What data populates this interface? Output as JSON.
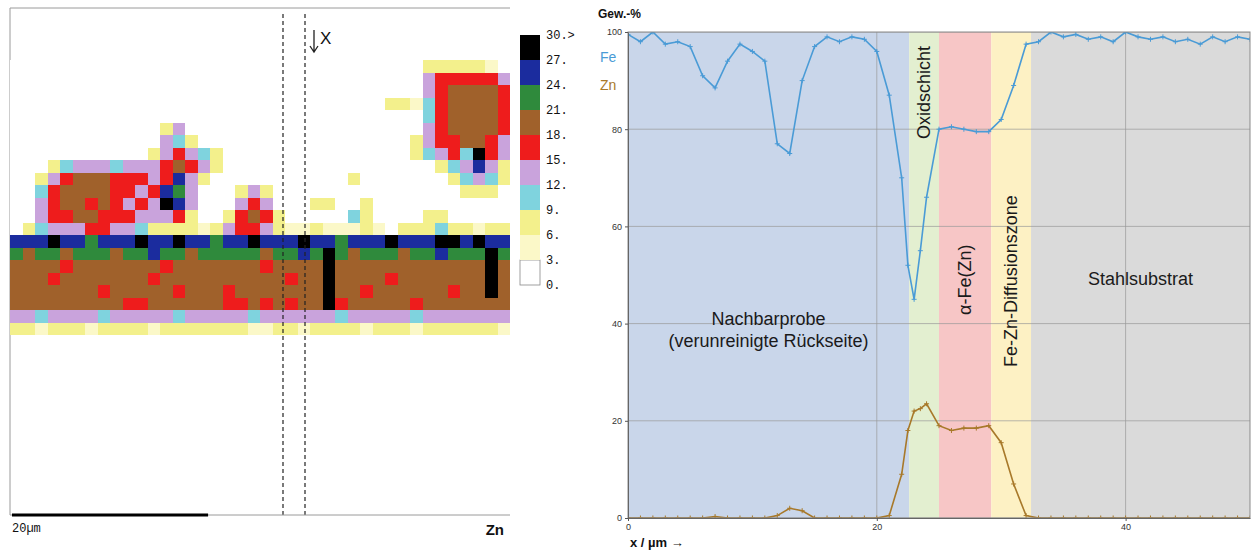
{
  "chart_data": [
    {
      "type": "heatmap",
      "title": "Zn",
      "xlim": [
        0,
        51
      ],
      "scale_bar": {
        "value": 20,
        "label": "20µm"
      },
      "annotations": [
        {
          "text": "X"
        }
      ],
      "colorbar": {
        "range": [
          0,
          30
        ],
        "ticks": [
          {
            "value": 0,
            "label": "0."
          },
          {
            "value": 3,
            "label": "3."
          },
          {
            "value": 6,
            "label": "6."
          },
          {
            "value": 9,
            "label": "9."
          },
          {
            "value": 12,
            "label": "12."
          },
          {
            "value": 15,
            "label": "15."
          },
          {
            "value": 18,
            "label": "18."
          },
          {
            "value": 21,
            "label": "21."
          },
          {
            "value": 24,
            "label": "24."
          },
          {
            "value": 27,
            "label": "27."
          },
          {
            "value": 30,
            "label": "30.>"
          }
        ],
        "colors": [
          "#ffffff",
          "#fbf8c8",
          "#f3f08c",
          "#7fd3de",
          "#c9a3dc",
          "#ee1c1c",
          "#a0612b",
          "#2f8a3c",
          "#1b2c9e",
          "#000000"
        ]
      },
      "cells": [
        [
          0,
          0,
          0,
          0,
          0,
          0,
          0,
          0,
          0,
          0,
          0,
          0,
          0,
          0,
          0,
          0,
          0,
          0,
          0,
          0,
          0,
          0,
          0,
          0,
          0,
          0,
          0,
          0,
          0,
          0,
          0,
          0,
          0,
          6,
          6,
          6,
          6,
          6,
          3,
          0
        ],
        [
          0,
          0,
          0,
          0,
          0,
          0,
          0,
          0,
          0,
          0,
          0,
          0,
          0,
          0,
          0,
          0,
          0,
          0,
          0,
          0,
          0,
          0,
          0,
          0,
          0,
          0,
          0,
          0,
          0,
          0,
          0,
          0,
          0,
          12,
          15,
          15,
          15,
          15,
          15,
          12
        ],
        [
          0,
          0,
          0,
          0,
          0,
          0,
          0,
          0,
          0,
          0,
          0,
          0,
          0,
          0,
          0,
          0,
          0,
          0,
          0,
          0,
          0,
          0,
          0,
          0,
          0,
          0,
          0,
          0,
          0,
          0,
          0,
          0,
          0,
          12,
          15,
          18,
          18,
          18,
          18,
          15
        ],
        [
          0,
          0,
          0,
          0,
          0,
          0,
          0,
          0,
          0,
          0,
          0,
          0,
          0,
          0,
          0,
          0,
          0,
          0,
          0,
          0,
          0,
          0,
          0,
          0,
          0,
          0,
          0,
          0,
          0,
          0,
          6,
          6,
          3,
          9,
          15,
          18,
          18,
          18,
          18,
          15
        ],
        [
          0,
          0,
          0,
          0,
          0,
          0,
          0,
          0,
          0,
          0,
          0,
          0,
          0,
          0,
          0,
          0,
          0,
          0,
          0,
          0,
          0,
          0,
          0,
          0,
          0,
          0,
          0,
          0,
          0,
          0,
          0,
          0,
          0,
          9,
          15,
          18,
          18,
          18,
          18,
          15
        ],
        [
          0,
          0,
          0,
          0,
          0,
          0,
          0,
          0,
          0,
          0,
          0,
          0,
          6,
          12,
          0,
          0,
          0,
          0,
          0,
          0,
          0,
          0,
          0,
          0,
          0,
          0,
          0,
          0,
          0,
          0,
          0,
          0,
          0,
          12,
          15,
          18,
          18,
          18,
          18,
          15
        ],
        [
          0,
          0,
          0,
          0,
          0,
          0,
          0,
          0,
          0,
          0,
          0,
          0,
          12,
          9,
          6,
          0,
          0,
          0,
          0,
          0,
          0,
          0,
          0,
          0,
          0,
          0,
          0,
          0,
          0,
          0,
          0,
          0,
          6,
          12,
          15,
          15,
          18,
          18,
          15,
          12
        ],
        [
          0,
          0,
          0,
          0,
          0,
          0,
          0,
          0,
          0,
          0,
          0,
          6,
          12,
          15,
          12,
          9,
          6,
          0,
          0,
          0,
          0,
          0,
          0,
          0,
          0,
          0,
          0,
          0,
          0,
          0,
          0,
          0,
          6,
          9,
          12,
          15,
          9,
          30,
          15,
          12
        ],
        [
          0,
          0,
          0,
          6,
          9,
          12,
          12,
          12,
          9,
          12,
          12,
          12,
          15,
          18,
          15,
          12,
          6,
          0,
          0,
          0,
          0,
          0,
          0,
          0,
          0,
          0,
          0,
          0,
          0,
          0,
          0,
          0,
          0,
          0,
          6,
          9,
          12,
          24,
          12,
          6
        ],
        [
          0,
          0,
          6,
          12,
          15,
          18,
          18,
          18,
          15,
          15,
          15,
          12,
          15,
          24,
          12,
          6,
          0,
          0,
          0,
          0,
          0,
          0,
          0,
          0,
          0,
          0,
          0,
          6,
          0,
          0,
          0,
          0,
          0,
          0,
          0,
          6,
          9,
          12,
          9,
          6
        ],
        [
          0,
          0,
          9,
          15,
          18,
          18,
          18,
          18,
          15,
          15,
          12,
          15,
          24,
          21,
          12,
          0,
          0,
          0,
          6,
          12,
          6,
          0,
          0,
          0,
          0,
          0,
          0,
          0,
          0,
          0,
          0,
          0,
          0,
          0,
          0,
          0,
          6,
          6,
          6,
          0
        ],
        [
          0,
          0,
          12,
          15,
          18,
          18,
          15,
          18,
          15,
          12,
          15,
          12,
          30,
          24,
          12,
          0,
          0,
          0,
          12,
          15,
          12,
          0,
          0,
          0,
          6,
          6,
          0,
          0,
          6,
          0,
          0,
          0,
          0,
          0,
          0,
          0,
          0,
          0,
          0,
          0
        ],
        [
          0,
          0,
          12,
          15,
          15,
          18,
          18,
          15,
          15,
          15,
          12,
          12,
          12,
          15,
          6,
          0,
          0,
          6,
          15,
          18,
          15,
          6,
          0,
          0,
          0,
          0,
          0,
          9,
          6,
          0,
          0,
          0,
          0,
          6,
          6,
          0,
          0,
          0,
          0,
          0
        ],
        [
          0,
          6,
          9,
          12,
          12,
          12,
          15,
          15,
          12,
          12,
          9,
          6,
          6,
          6,
          6,
          3,
          6,
          12,
          15,
          15,
          12,
          6,
          3,
          3,
          6,
          3,
          3,
          3,
          6,
          3,
          0,
          6,
          6,
          6,
          9,
          6,
          6,
          3,
          6,
          6
        ],
        [
          24,
          24,
          24,
          30,
          24,
          24,
          21,
          24,
          24,
          24,
          30,
          24,
          24,
          30,
          24,
          24,
          21,
          24,
          24,
          30,
          24,
          24,
          24,
          30,
          24,
          24,
          21,
          24,
          24,
          24,
          30,
          24,
          24,
          24,
          30,
          30,
          24,
          30,
          24,
          24
        ],
        [
          21,
          18,
          21,
          21,
          18,
          21,
          21,
          21,
          18,
          21,
          21,
          24,
          21,
          21,
          18,
          21,
          21,
          21,
          21,
          21,
          18,
          21,
          21,
          24,
          21,
          30,
          21,
          18,
          21,
          21,
          21,
          18,
          21,
          21,
          24,
          21,
          21,
          21,
          30,
          21
        ],
        [
          18,
          18,
          18,
          18,
          15,
          18,
          18,
          18,
          18,
          18,
          18,
          18,
          15,
          18,
          18,
          18,
          18,
          18,
          18,
          18,
          15,
          18,
          18,
          18,
          18,
          30,
          18,
          18,
          18,
          18,
          18,
          18,
          18,
          18,
          18,
          18,
          18,
          18,
          30,
          18
        ],
        [
          18,
          18,
          18,
          15,
          18,
          18,
          18,
          18,
          18,
          18,
          18,
          15,
          18,
          18,
          18,
          18,
          18,
          18,
          18,
          18,
          18,
          18,
          15,
          18,
          18,
          30,
          18,
          18,
          18,
          18,
          15,
          18,
          18,
          18,
          18,
          18,
          18,
          18,
          30,
          18
        ],
        [
          18,
          18,
          18,
          18,
          18,
          18,
          18,
          15,
          18,
          18,
          18,
          18,
          18,
          15,
          18,
          18,
          18,
          15,
          18,
          18,
          18,
          18,
          18,
          18,
          18,
          30,
          18,
          18,
          15,
          18,
          18,
          18,
          18,
          18,
          18,
          15,
          18,
          18,
          30,
          18
        ],
        [
          18,
          18,
          18,
          18,
          18,
          18,
          18,
          18,
          18,
          15,
          15,
          18,
          18,
          18,
          18,
          18,
          18,
          15,
          15,
          18,
          15,
          18,
          15,
          18,
          18,
          30,
          15,
          18,
          18,
          18,
          18,
          18,
          15,
          18,
          18,
          18,
          18,
          18,
          18,
          18
        ],
        [
          12,
          12,
          9,
          12,
          12,
          12,
          12,
          9,
          12,
          12,
          12,
          12,
          12,
          9,
          12,
          12,
          12,
          12,
          12,
          9,
          12,
          12,
          12,
          12,
          12,
          12,
          9,
          12,
          12,
          12,
          12,
          12,
          9,
          12,
          12,
          12,
          12,
          12,
          12,
          12
        ],
        [
          6,
          6,
          3,
          6,
          6,
          6,
          3,
          6,
          6,
          6,
          6,
          3,
          6,
          6,
          6,
          6,
          6,
          6,
          6,
          3,
          3,
          6,
          6,
          3,
          6,
          6,
          6,
          6,
          3,
          6,
          6,
          6,
          3,
          6,
          6,
          6,
          6,
          6,
          6,
          3
        ]
      ]
    },
    {
      "type": "line",
      "xlabel": "x / µm →",
      "ylabel": "Gew.-%",
      "xlim": [
        0,
        50
      ],
      "ylim": [
        0,
        100
      ],
      "xticks": [
        0,
        20,
        40
      ],
      "yticks": [
        0,
        20,
        40,
        60,
        80,
        100
      ],
      "grid": true,
      "legend": "left",
      "x": [
        0,
        1,
        2,
        3,
        4,
        5,
        6,
        7,
        8,
        9,
        10,
        11,
        12,
        13,
        14,
        15,
        16,
        17,
        18,
        19,
        20,
        21,
        22,
        22.5,
        23,
        23.5,
        24,
        25,
        26,
        27,
        28,
        29,
        30,
        31,
        32,
        33,
        34,
        35,
        36,
        37,
        38,
        39,
        40,
        41,
        42,
        43,
        44,
        45,
        46,
        47,
        48,
        49,
        50
      ],
      "series": [
        {
          "name": "Fe",
          "color": "#4a9bd6",
          "marker": "plus",
          "values": [
            99.5,
            98,
            100,
            97.5,
            98,
            97,
            91,
            88.5,
            94,
            97.5,
            96,
            94,
            77,
            75,
            90,
            97,
            99,
            98,
            99,
            98.5,
            96,
            87,
            70,
            52,
            45,
            55,
            66,
            80,
            80.5,
            80,
            79.5,
            79.5,
            82,
            89,
            97.5,
            98,
            100,
            99,
            99.5,
            98.5,
            99,
            98,
            100,
            99,
            98.5,
            99,
            98,
            98.5,
            97.5,
            99,
            98,
            99,
            98.5
          ]
        },
        {
          "name": "Zn",
          "color": "#a8792a",
          "marker": "plus",
          "values": [
            0,
            0,
            0,
            0,
            0,
            0,
            0,
            0.3,
            0,
            0,
            0,
            0,
            0.5,
            2,
            1.5,
            0,
            0,
            0,
            0,
            0,
            0,
            0.5,
            9,
            18,
            22,
            22.5,
            23.5,
            19,
            18,
            18.5,
            18.5,
            19,
            15.5,
            7,
            0.5,
            0,
            0,
            0,
            0,
            0,
            0,
            0,
            0,
            0,
            0,
            0,
            0,
            0,
            0,
            0,
            0,
            0,
            0
          ]
        }
      ],
      "regions": [
        {
          "label": "Nachbarprobe (verunreinigte Rückseite)",
          "from": 0,
          "to": 22.6,
          "color": "#c9d6ea"
        },
        {
          "label": "Oxidschicht",
          "from": 22.6,
          "to": 25,
          "color": "#e3efd0"
        },
        {
          "label": "α-Fe(Zn)",
          "from": 25,
          "to": 29.2,
          "color": "#f7c6c6"
        },
        {
          "label": "Fe-Zn-Diffusionszone",
          "from": 29.2,
          "to": 32.4,
          "color": "#fdf1c4"
        },
        {
          "label": "Stahlsubstrat",
          "from": 32.4,
          "to": 50,
          "color": "#dadada"
        }
      ]
    }
  ]
}
